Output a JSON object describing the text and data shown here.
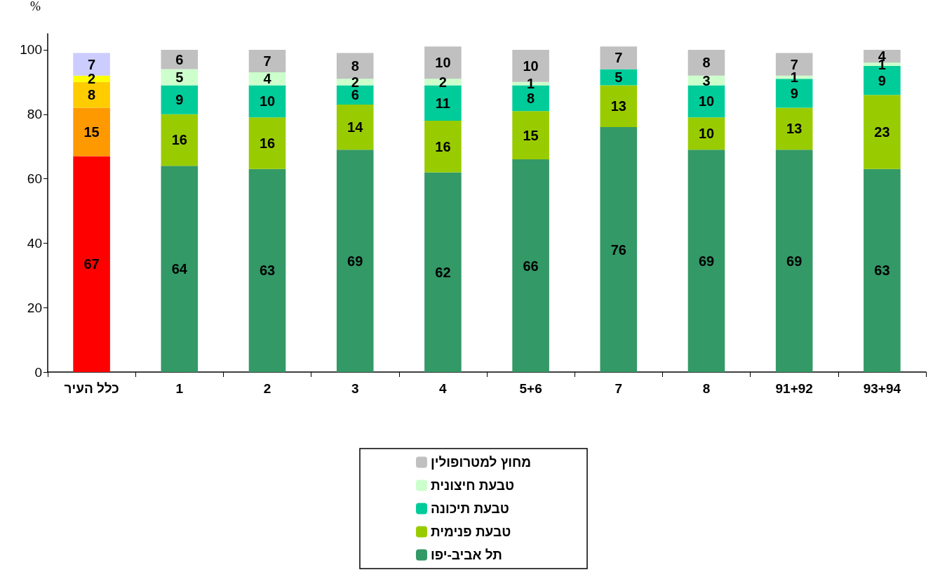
{
  "chart_data": {
    "type": "bar",
    "stacked": true,
    "ylabel": "%",
    "categories": [
      "כלל העיר",
      "1",
      "2",
      "3",
      "4",
      "5+6",
      "7",
      "8",
      "91+92",
      "93+94"
    ],
    "series": [
      {
        "name": "תל אביב-יפו",
        "color": "#339966",
        "colors": [
          "#ff0000",
          "#339966",
          "#339966",
          "#339966",
          "#339966",
          "#339966",
          "#339966",
          "#339966",
          "#339966",
          "#339966"
        ],
        "values": [
          67,
          64,
          63,
          69,
          62,
          66,
          76,
          69,
          69,
          63
        ]
      },
      {
        "name": "טבעת פנימית",
        "color": "#99cc00",
        "colors": [
          "#ff9900",
          "#99cc00",
          "#99cc00",
          "#99cc00",
          "#99cc00",
          "#99cc00",
          "#99cc00",
          "#99cc00",
          "#99cc00",
          "#99cc00"
        ],
        "values": [
          15,
          16,
          16,
          14,
          16,
          15,
          13,
          10,
          13,
          23
        ]
      },
      {
        "name": "טבעת תיכונה",
        "color": "#00cc99",
        "colors": [
          "#ffcc00",
          "#00cc99",
          "#00cc99",
          "#00cc99",
          "#00cc99",
          "#00cc99",
          "#00cc99",
          "#00cc99",
          "#00cc99",
          "#00cc99"
        ],
        "values": [
          8,
          9,
          10,
          6,
          11,
          8,
          5,
          10,
          9,
          9
        ]
      },
      {
        "name": "טבעת חיצונית",
        "color": "#ccffcc",
        "colors": [
          "#ffff00",
          "#ccffcc",
          "#ccffcc",
          "#ccffcc",
          "#ccffcc",
          "#ccffcc",
          "#ccffcc",
          "#ccffcc",
          "#ccffcc",
          "#ccffcc"
        ],
        "values": [
          2,
          5,
          4,
          2,
          2,
          1,
          null,
          3,
          1,
          1
        ]
      },
      {
        "name": "מחוץ למטרופולין",
        "color": "#c0c0c0",
        "colors": [
          "#ccccff",
          "#c0c0c0",
          "#c0c0c0",
          "#c0c0c0",
          "#c0c0c0",
          "#c0c0c0",
          "#c0c0c0",
          "#c0c0c0",
          "#c0c0c0",
          "#c0c0c0"
        ],
        "values": [
          7,
          6,
          7,
          8,
          10,
          10,
          7,
          8,
          7,
          4
        ]
      }
    ],
    "ylim": [
      0,
      105
    ],
    "yticks": [
      0,
      20,
      40,
      60,
      80,
      100
    ],
    "data_labels": true,
    "grid": false,
    "legend": "bottom"
  }
}
